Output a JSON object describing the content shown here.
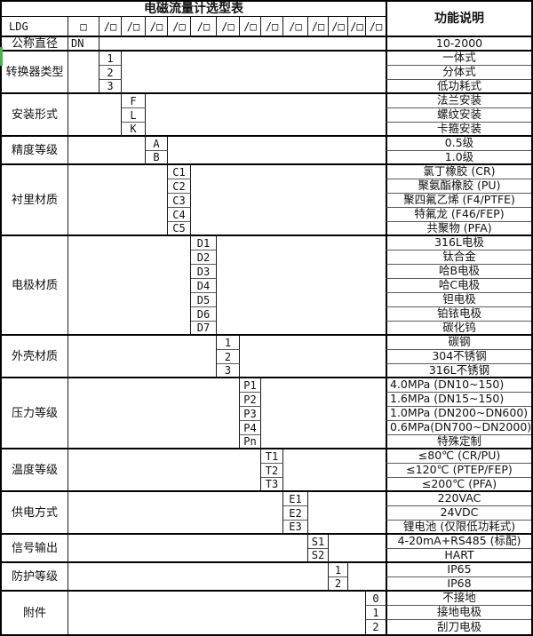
{
  "title": "电磁流量计选型表",
  "function_header": "功能说明",
  "model_row": {
    "model": "LDG",
    "first_box": "□",
    "slot": "/□",
    "slot_count": 13
  },
  "accent": {
    "artifact_green": "#4caf50",
    "line_black": "#000000",
    "line_inner_gray": "#5a5a5a"
  },
  "groups": [
    {
      "label": "公称直径",
      "col": 1,
      "rows": [
        {
          "code": "DN",
          "desc": "10-2000",
          "code_align": "left"
        }
      ]
    },
    {
      "label": "转换器类型",
      "col": 2,
      "rows": [
        {
          "code": "1",
          "desc": "一体式"
        },
        {
          "code": "2",
          "desc": "分体式"
        },
        {
          "code": "3",
          "desc": "低功耗式"
        }
      ]
    },
    {
      "label": "安装形式",
      "col": 3,
      "rows": [
        {
          "code": "F",
          "desc": "法兰安装"
        },
        {
          "code": "L",
          "desc": "螺纹安装"
        },
        {
          "code": "K",
          "desc": "卡箍安装"
        }
      ]
    },
    {
      "label": "精度等级",
      "col": 4,
      "rows": [
        {
          "code": "A",
          "desc": "0.5级"
        },
        {
          "code": "B",
          "desc": "1.0级"
        }
      ]
    },
    {
      "label": "衬里材质",
      "col": 5,
      "rows": [
        {
          "code": "C1",
          "desc": "氯丁橡胶 (CR)"
        },
        {
          "code": "C2",
          "desc": "聚氨酯橡胶 (PU)"
        },
        {
          "code": "C3",
          "desc": "聚四氟乙烯 (F4/PTFE)"
        },
        {
          "code": "C4",
          "desc": "特氟龙 (F46/FEP)"
        },
        {
          "code": "C5",
          "desc": "共聚物 (PFA)"
        }
      ]
    },
    {
      "label": "电极材质",
      "col": 6,
      "rows": [
        {
          "code": "D1",
          "desc": "316L电极"
        },
        {
          "code": "D2",
          "desc": "钛合金"
        },
        {
          "code": "D3",
          "desc": "哈B电极"
        },
        {
          "code": "D4",
          "desc": "哈C电极"
        },
        {
          "code": "D5",
          "desc": "钽电极"
        },
        {
          "code": "D6",
          "desc": "铂铱电极"
        },
        {
          "code": "D7",
          "desc": "碳化钨"
        }
      ]
    },
    {
      "label": "外壳材质",
      "col": 7,
      "rows": [
        {
          "code": "1",
          "desc": "碳钢"
        },
        {
          "code": "2",
          "desc": "304不锈钢"
        },
        {
          "code": "3",
          "desc": "316L不锈钢"
        }
      ]
    },
    {
      "label": "压力等级",
      "col": 8,
      "rows": [
        {
          "code": "P1",
          "desc": "4.0MPa (DN10~150)",
          "desc_align": "left"
        },
        {
          "code": "P2",
          "desc": "1.6MPa (DN15~150)",
          "desc_align": "left"
        },
        {
          "code": "P3",
          "desc": "1.0MPa (DN200~DN600)",
          "desc_align": "left"
        },
        {
          "code": "P4",
          "desc": "0.6MPa(DN700~DN2000)",
          "desc_align": "left"
        },
        {
          "code": "Pn",
          "desc": "特殊定制"
        }
      ]
    },
    {
      "label": "温度等级",
      "col": 9,
      "rows": [
        {
          "code": "T1",
          "desc": "≤80℃ (CR/PU)"
        },
        {
          "code": "T2",
          "desc": "≤120℃ (PTEP/FEP)"
        },
        {
          "code": "T3",
          "desc": "≤200℃ (PFA)"
        }
      ]
    },
    {
      "label": "供电方式",
      "col": 10,
      "rows": [
        {
          "code": "E1",
          "desc": "220VAC"
        },
        {
          "code": "E2",
          "desc": "24VDC"
        },
        {
          "code": "E3",
          "desc": "锂电池 (仅限低功耗式)"
        }
      ]
    },
    {
      "label": "信号输出",
      "col": 11,
      "rows": [
        {
          "code": "S1",
          "desc": "4-20mA+RS485 (标配)"
        },
        {
          "code": "S2",
          "desc": "HART"
        }
      ]
    },
    {
      "label": "防护等级",
      "col": 12,
      "rows": [
        {
          "code": "1",
          "desc": "IP65"
        },
        {
          "code": "2",
          "desc": "IP68"
        }
      ]
    },
    {
      "label": "附件",
      "col": 14,
      "rows": [
        {
          "code": "0",
          "desc": "不接地"
        },
        {
          "code": "1",
          "desc": "接地电极"
        },
        {
          "code": "2",
          "desc": "刮刀电极"
        }
      ]
    }
  ]
}
